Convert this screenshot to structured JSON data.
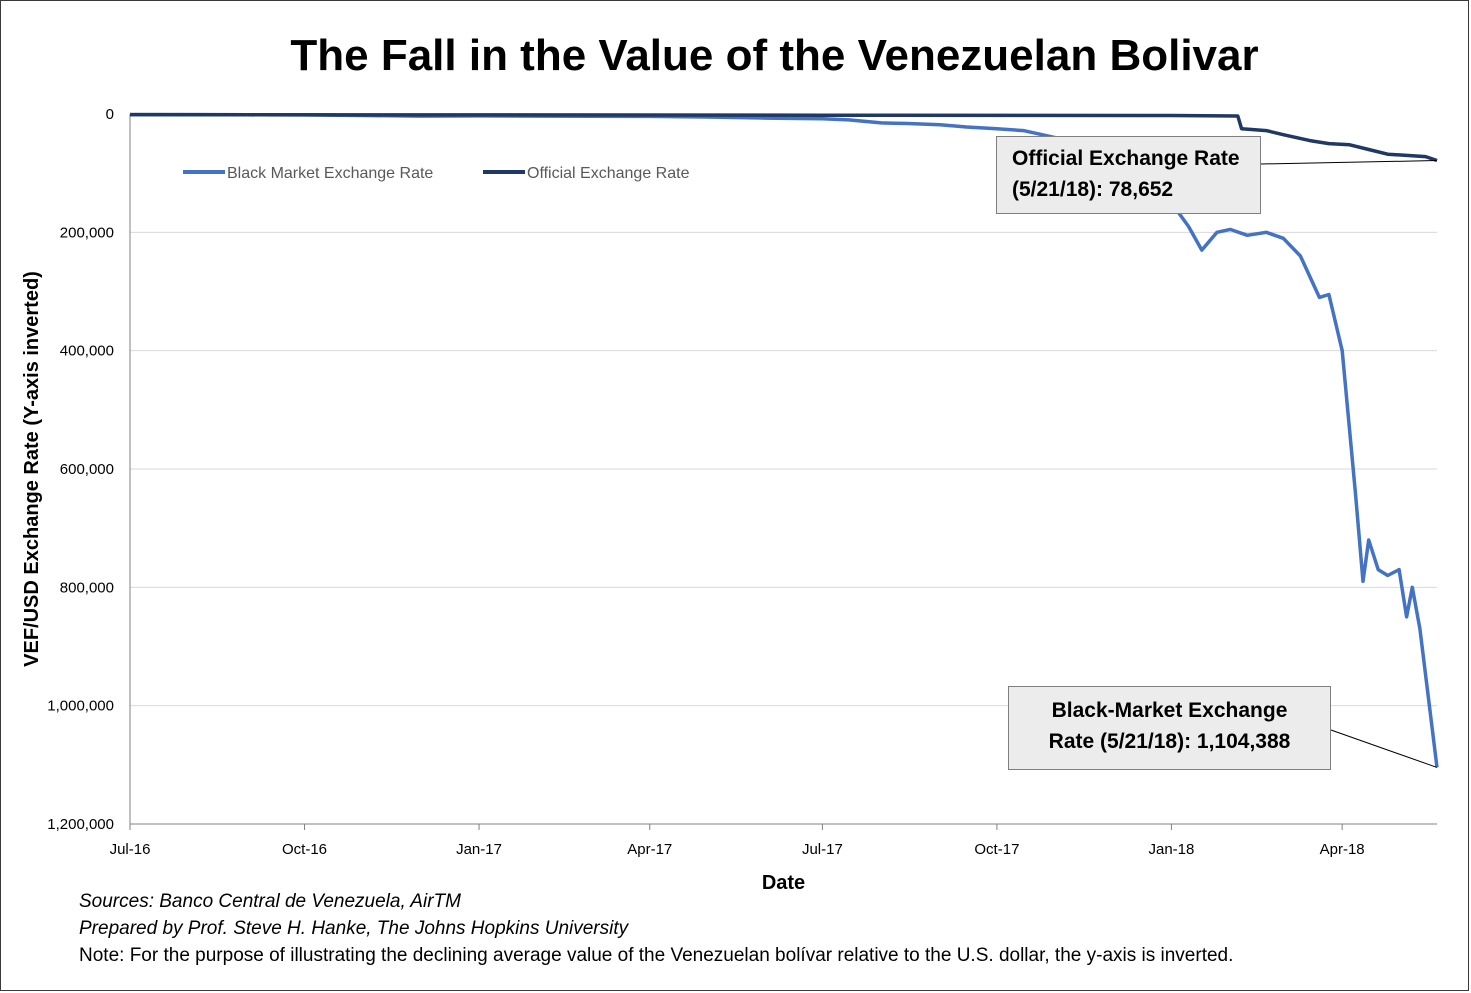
{
  "title": "The Fall in the Value of the Venezuelan Bolivar",
  "chart_data": {
    "type": "line",
    "title": "The Fall in the Value of the Venezuelan Bolivar",
    "xlabel": "Date",
    "ylabel": "VEF/USD Exchange Rate (Y-axis inverted)",
    "y_inverted": true,
    "ylim": [
      0,
      1200000
    ],
    "yticks": [
      0,
      200000,
      400000,
      600000,
      800000,
      1000000,
      1200000
    ],
    "ytick_labels": [
      "0",
      "200,000",
      "400,000",
      "600,000",
      "800,000",
      "1,000,000",
      "1,200,000"
    ],
    "xlim": [
      "2016-07-01",
      "2018-05-21"
    ],
    "xticks": [
      "2016-07-01",
      "2016-10-01",
      "2017-01-01",
      "2017-04-01",
      "2017-07-01",
      "2017-10-01",
      "2018-01-01",
      "2018-04-01"
    ],
    "xtick_labels": [
      "Jul-16",
      "Oct-16",
      "Jan-17",
      "Apr-17",
      "Jul-17",
      "Oct-17",
      "Jan-18",
      "Apr-18"
    ],
    "grid": "horizontal",
    "legend_position": "top-left",
    "series": [
      {
        "name": "Black Market Exchange Rate",
        "color": "#4472c4",
        "points": [
          [
            "2016-07-01",
            1000
          ],
          [
            "2016-08-01",
            1000
          ],
          [
            "2016-09-01",
            1400
          ],
          [
            "2016-10-01",
            1500
          ],
          [
            "2016-11-01",
            2500
          ],
          [
            "2016-12-01",
            3500
          ],
          [
            "2017-01-01",
            3200
          ],
          [
            "2017-02-01",
            3500
          ],
          [
            "2017-03-01",
            3800
          ],
          [
            "2017-04-01",
            4000
          ],
          [
            "2017-05-01",
            5000
          ],
          [
            "2017-06-01",
            7000
          ],
          [
            "2017-07-01",
            8000
          ],
          [
            "2017-07-15",
            10000
          ],
          [
            "2017-08-01",
            15000
          ],
          [
            "2017-08-15",
            16000
          ],
          [
            "2017-09-01",
            18000
          ],
          [
            "2017-09-15",
            22000
          ],
          [
            "2017-10-01",
            25000
          ],
          [
            "2017-10-15",
            28000
          ],
          [
            "2017-11-01",
            40000
          ],
          [
            "2017-11-15",
            55000
          ],
          [
            "2017-12-01",
            80000
          ],
          [
            "2017-12-15",
            110000
          ],
          [
            "2018-01-01",
            150000
          ],
          [
            "2018-01-10",
            190000
          ],
          [
            "2018-01-17",
            230000
          ],
          [
            "2018-01-25",
            200000
          ],
          [
            "2018-02-01",
            195000
          ],
          [
            "2018-02-10",
            205000
          ],
          [
            "2018-02-20",
            200000
          ],
          [
            "2018-03-01",
            210000
          ],
          [
            "2018-03-10",
            240000
          ],
          [
            "2018-03-20",
            310000
          ],
          [
            "2018-03-25",
            305000
          ],
          [
            "2018-04-01",
            400000
          ],
          [
            "2018-04-08",
            640000
          ],
          [
            "2018-04-12",
            790000
          ],
          [
            "2018-04-15",
            720000
          ],
          [
            "2018-04-20",
            770000
          ],
          [
            "2018-04-25",
            780000
          ],
          [
            "2018-05-01",
            770000
          ],
          [
            "2018-05-05",
            850000
          ],
          [
            "2018-05-08",
            800000
          ],
          [
            "2018-05-12",
            870000
          ],
          [
            "2018-05-21",
            1104388
          ]
        ]
      },
      {
        "name": "Official Exchange Rate",
        "color": "#1f3864",
        "points": [
          [
            "2016-07-01",
            1000
          ],
          [
            "2017-07-01",
            2000
          ],
          [
            "2018-01-01",
            2500
          ],
          [
            "2018-02-05",
            3345
          ],
          [
            "2018-02-07",
            25000
          ],
          [
            "2018-02-20",
            28000
          ],
          [
            "2018-03-01",
            35000
          ],
          [
            "2018-03-15",
            45000
          ],
          [
            "2018-03-25",
            50000
          ],
          [
            "2018-04-05",
            52000
          ],
          [
            "2018-04-15",
            60000
          ],
          [
            "2018-04-25",
            68000
          ],
          [
            "2018-05-05",
            70000
          ],
          [
            "2018-05-15",
            72000
          ],
          [
            "2018-05-21",
            78652
          ]
        ]
      }
    ],
    "annotations": [
      {
        "series": "Official Exchange Rate",
        "lines": [
          "Official Exchange Rate",
          "(5/21/18): 78,652"
        ],
        "point": [
          "2018-05-21",
          78652
        ]
      },
      {
        "series": "Black Market Exchange Rate",
        "lines": [
          "Black-Market Exchange",
          "Rate (5/21/18): 1,104,388"
        ],
        "point": [
          "2018-05-21",
          1104388
        ]
      }
    ]
  },
  "notes": {
    "sources": "Sources: Banco Central de Venezuela, AirTM",
    "prepared": "Prepared by Prof. Steve H. Hanke, The Johns Hopkins University",
    "note": "Note: For the purpose of illustrating the declining average value of the Venezuelan bolívar relative to the U.S. dollar, the y-axis is inverted."
  }
}
